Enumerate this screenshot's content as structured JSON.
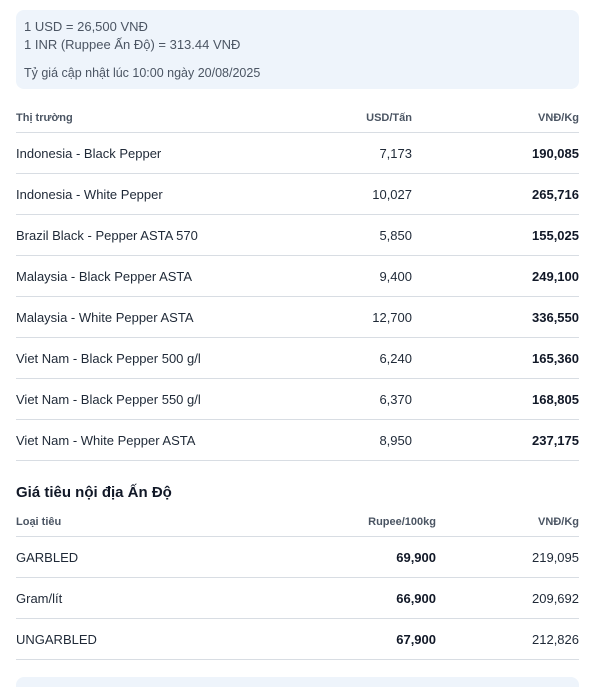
{
  "exchange": {
    "usd_line": "1 USD = 26,500 VNĐ",
    "inr_line": "1 INR (Ruppee Ấn Độ) = 313.44 VNĐ",
    "updated": "Tỷ giá cập nhật lúc 10:00 ngày 20/08/2025"
  },
  "market_table": {
    "headers": [
      "Thị trường",
      "USD/Tấn",
      "VNĐ/Kg"
    ],
    "rows": [
      [
        "Indonesia - Black Pepper",
        "7,173",
        "190,085"
      ],
      [
        "Indonesia - White Pepper",
        "10,027",
        "265,716"
      ],
      [
        "Brazil Black - Pepper ASTA 570",
        "5,850",
        "155,025"
      ],
      [
        "Malaysia - Black Pepper ASTA",
        "9,400",
        "249,100"
      ],
      [
        "Malaysia - White Pepper ASTA",
        "12,700",
        "336,550"
      ],
      [
        "Viet Nam - Black Pepper 500 g/l",
        "6,240",
        "165,360"
      ],
      [
        "Viet Nam - Black Pepper 550 g/l",
        "6,370",
        "168,805"
      ],
      [
        "Viet Nam - White Pepper ASTA",
        "8,950",
        "237,175"
      ]
    ]
  },
  "india_section": {
    "title": "Giá tiêu nội địa Ấn Độ",
    "headers": [
      "Loại tiêu",
      "Rupee/100kg",
      "VNĐ/Kg"
    ],
    "rows": [
      [
        "GARBLED",
        "69,900",
        "219,095"
      ],
      [
        "Gram/lít",
        "66,900",
        "209,692"
      ],
      [
        "UNGARBLED",
        "67,900",
        "212,826"
      ]
    ]
  }
}
